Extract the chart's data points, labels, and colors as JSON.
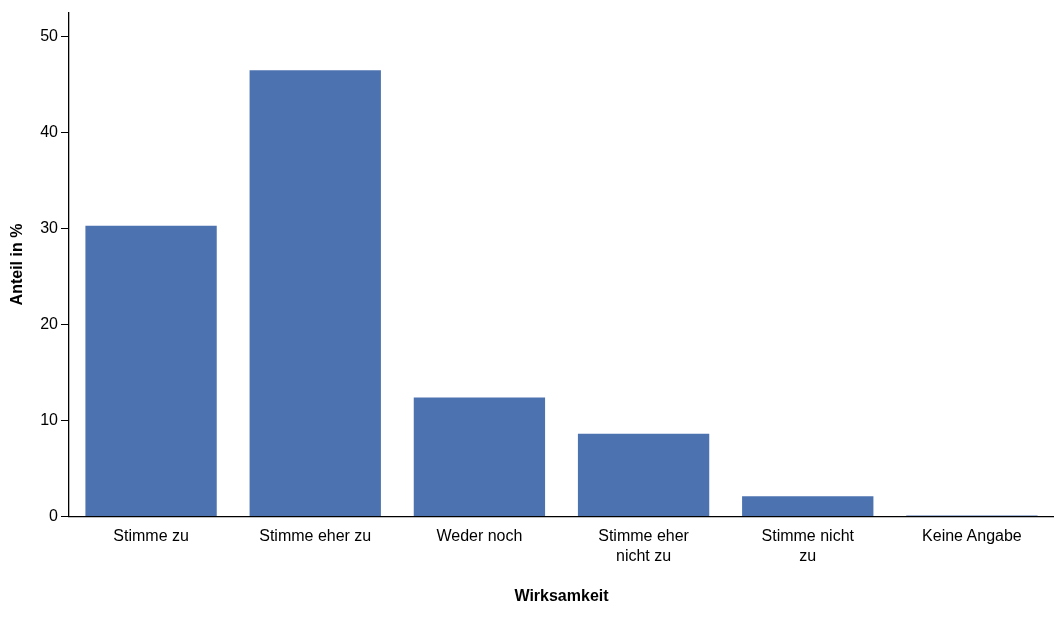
{
  "chart_data": {
    "type": "bar",
    "xlabel": "Wirksamkeit",
    "ylabel": "Anteil in %",
    "categories": [
      "Stimme zu",
      "Stimme eher zu",
      "Weder noch",
      "Stimme eher nicht zu",
      "Stimme nicht zu",
      "Keine Angabe"
    ],
    "values": [
      30.3,
      46.5,
      12.4,
      8.6,
      2.1,
      0.1
    ],
    "color": "#4c72b0",
    "ylim": [
      0,
      52.5
    ],
    "yticks": [
      0,
      10,
      20,
      30,
      40,
      50
    ],
    "grid": false,
    "legend": false
  }
}
